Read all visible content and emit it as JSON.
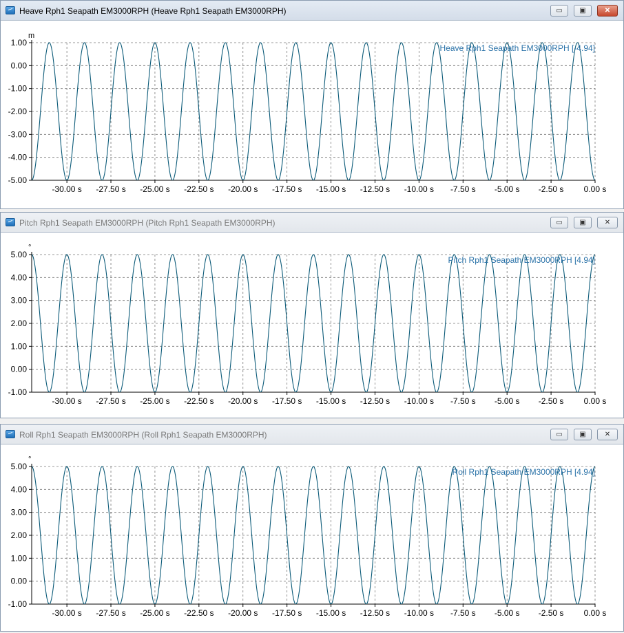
{
  "windows": [
    {
      "title": "Heave Rph1 Seapath EM3000RPH (Heave Rph1 Seapath EM3000RPH)",
      "active": true,
      "controls": {
        "minimize": "▭",
        "maximize": "▣",
        "close": "✕"
      },
      "chart_data": {
        "type": "line",
        "unit": "m",
        "legend": "Heave Rph1 Seapath EM3000RPH [-4.94]",
        "legend_position": "top-right",
        "grid": true,
        "xlim": [
          -32.0,
          0.0
        ],
        "ylim": [
          -5.0,
          1.0
        ],
        "yticks": [
          "1.00",
          "0.00",
          "-1.00",
          "-2.00",
          "-3.00",
          "-4.00",
          "-5.00"
        ],
        "ytick_values": [
          1,
          0,
          -1,
          -2,
          -3,
          -4,
          -5
        ],
        "xticks": [
          "-30.00 s",
          "-27.50 s",
          "-25.00 s",
          "-22.50 s",
          "-20.00 s",
          "-17.50 s",
          "-15.00 s",
          "-12.50 s",
          "-10.00 s",
          "-7.50 s",
          "-5.00 s",
          "-2.50 s",
          "0.00 s"
        ],
        "xtick_values": [
          -30,
          -27.5,
          -25,
          -22.5,
          -20,
          -17.5,
          -15,
          -12.5,
          -10,
          -7.5,
          -5,
          -2.5,
          0
        ],
        "series": [
          {
            "color": "#0b5a78",
            "wave": {
              "min": -5.0,
              "max": 1.0,
              "period_s": 2.0,
              "peak_at_s": -1.0
            }
          }
        ]
      }
    },
    {
      "title": "Pitch Rph1 Seapath EM3000RPH (Pitch Rph1 Seapath EM3000RPH)",
      "active": false,
      "controls": {
        "minimize": "▭",
        "maximize": "▣",
        "close": "✕"
      },
      "chart_data": {
        "type": "line",
        "unit": "°",
        "legend": "Pitch Rph1 Seapath EM3000RPH [4.94]",
        "legend_position": "top-right",
        "grid": true,
        "xlim": [
          -32.0,
          0.0
        ],
        "ylim": [
          -1.0,
          5.0
        ],
        "yticks": [
          "5.00",
          "4.00",
          "3.00",
          "2.00",
          "1.00",
          "0.00",
          "-1.00"
        ],
        "ytick_values": [
          5,
          4,
          3,
          2,
          1,
          0,
          -1
        ],
        "xticks": [
          "-30.00 s",
          "-27.50 s",
          "-25.00 s",
          "-22.50 s",
          "-20.00 s",
          "-17.50 s",
          "-15.00 s",
          "-12.50 s",
          "-10.00 s",
          "-7.50 s",
          "-5.00 s",
          "-2.50 s",
          "0.00 s"
        ],
        "xtick_values": [
          -30,
          -27.5,
          -25,
          -22.5,
          -20,
          -17.5,
          -15,
          -12.5,
          -10,
          -7.5,
          -5,
          -2.5,
          0
        ],
        "series": [
          {
            "color": "#0b5a78",
            "wave": {
              "min": -1.0,
              "max": 5.0,
              "period_s": 2.0,
              "peak_at_s": -2.0
            }
          }
        ]
      }
    },
    {
      "title": "Roll Rph1 Seapath EM3000RPH (Roll Rph1 Seapath EM3000RPH)",
      "active": false,
      "controls": {
        "minimize": "▭",
        "maximize": "▣",
        "close": "✕"
      },
      "chart_data": {
        "type": "line",
        "unit": "°",
        "legend": "Roll Rph1 Seapath EM3000RPH [4.94]",
        "legend_position": "top-right",
        "grid": true,
        "xlim": [
          -32.0,
          0.0
        ],
        "ylim": [
          -1.0,
          5.0
        ],
        "yticks": [
          "5.00",
          "4.00",
          "3.00",
          "2.00",
          "1.00",
          "0.00",
          "-1.00"
        ],
        "ytick_values": [
          5,
          4,
          3,
          2,
          1,
          0,
          -1
        ],
        "xticks": [
          "-30.00 s",
          "-27.50 s",
          "-25.00 s",
          "-22.50 s",
          "-20.00 s",
          "-17.50 s",
          "-15.00 s",
          "-12.50 s",
          "-10.00 s",
          "-7.50 s",
          "-5.00 s",
          "-2.50 s",
          "0.00 s"
        ],
        "xtick_values": [
          -30,
          -27.5,
          -25,
          -22.5,
          -20,
          -17.5,
          -15,
          -12.5,
          -10,
          -7.5,
          -5,
          -2.5,
          0
        ],
        "series": [
          {
            "color": "#0b5a78",
            "wave": {
              "min": -1.0,
              "max": 5.0,
              "period_s": 2.0,
              "peak_at_s": -2.0
            }
          }
        ]
      }
    }
  ]
}
